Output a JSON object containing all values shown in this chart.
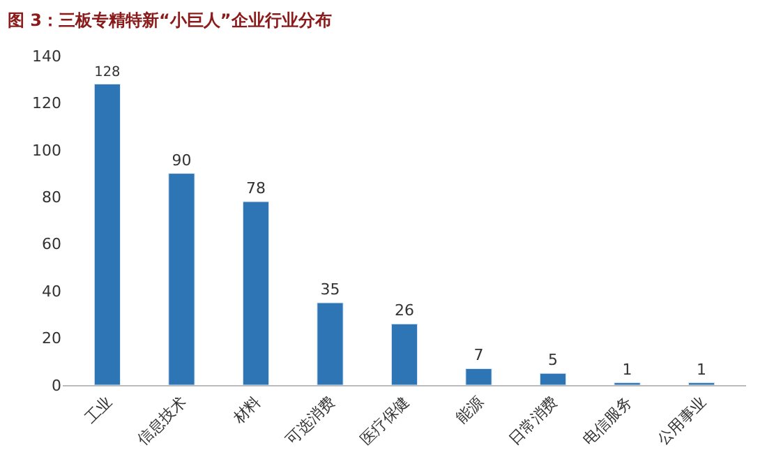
{
  "chart_data": {
    "type": "bar",
    "title": "图 3：三板专精特新“小巨人”企业行业分布",
    "categories": [
      "工业",
      "信息技术",
      "材料",
      "可选消费",
      "医疗保健",
      "能源",
      "日常消费",
      "电信服务",
      "公用事业"
    ],
    "values": [
      128,
      90,
      78,
      35,
      26,
      7,
      5,
      1,
      1
    ],
    "color": "#2e75b6",
    "ylim": [
      0,
      140
    ],
    "yticks": [
      0,
      20,
      40,
      60,
      80,
      100,
      120,
      140
    ],
    "data_labels": true
  }
}
